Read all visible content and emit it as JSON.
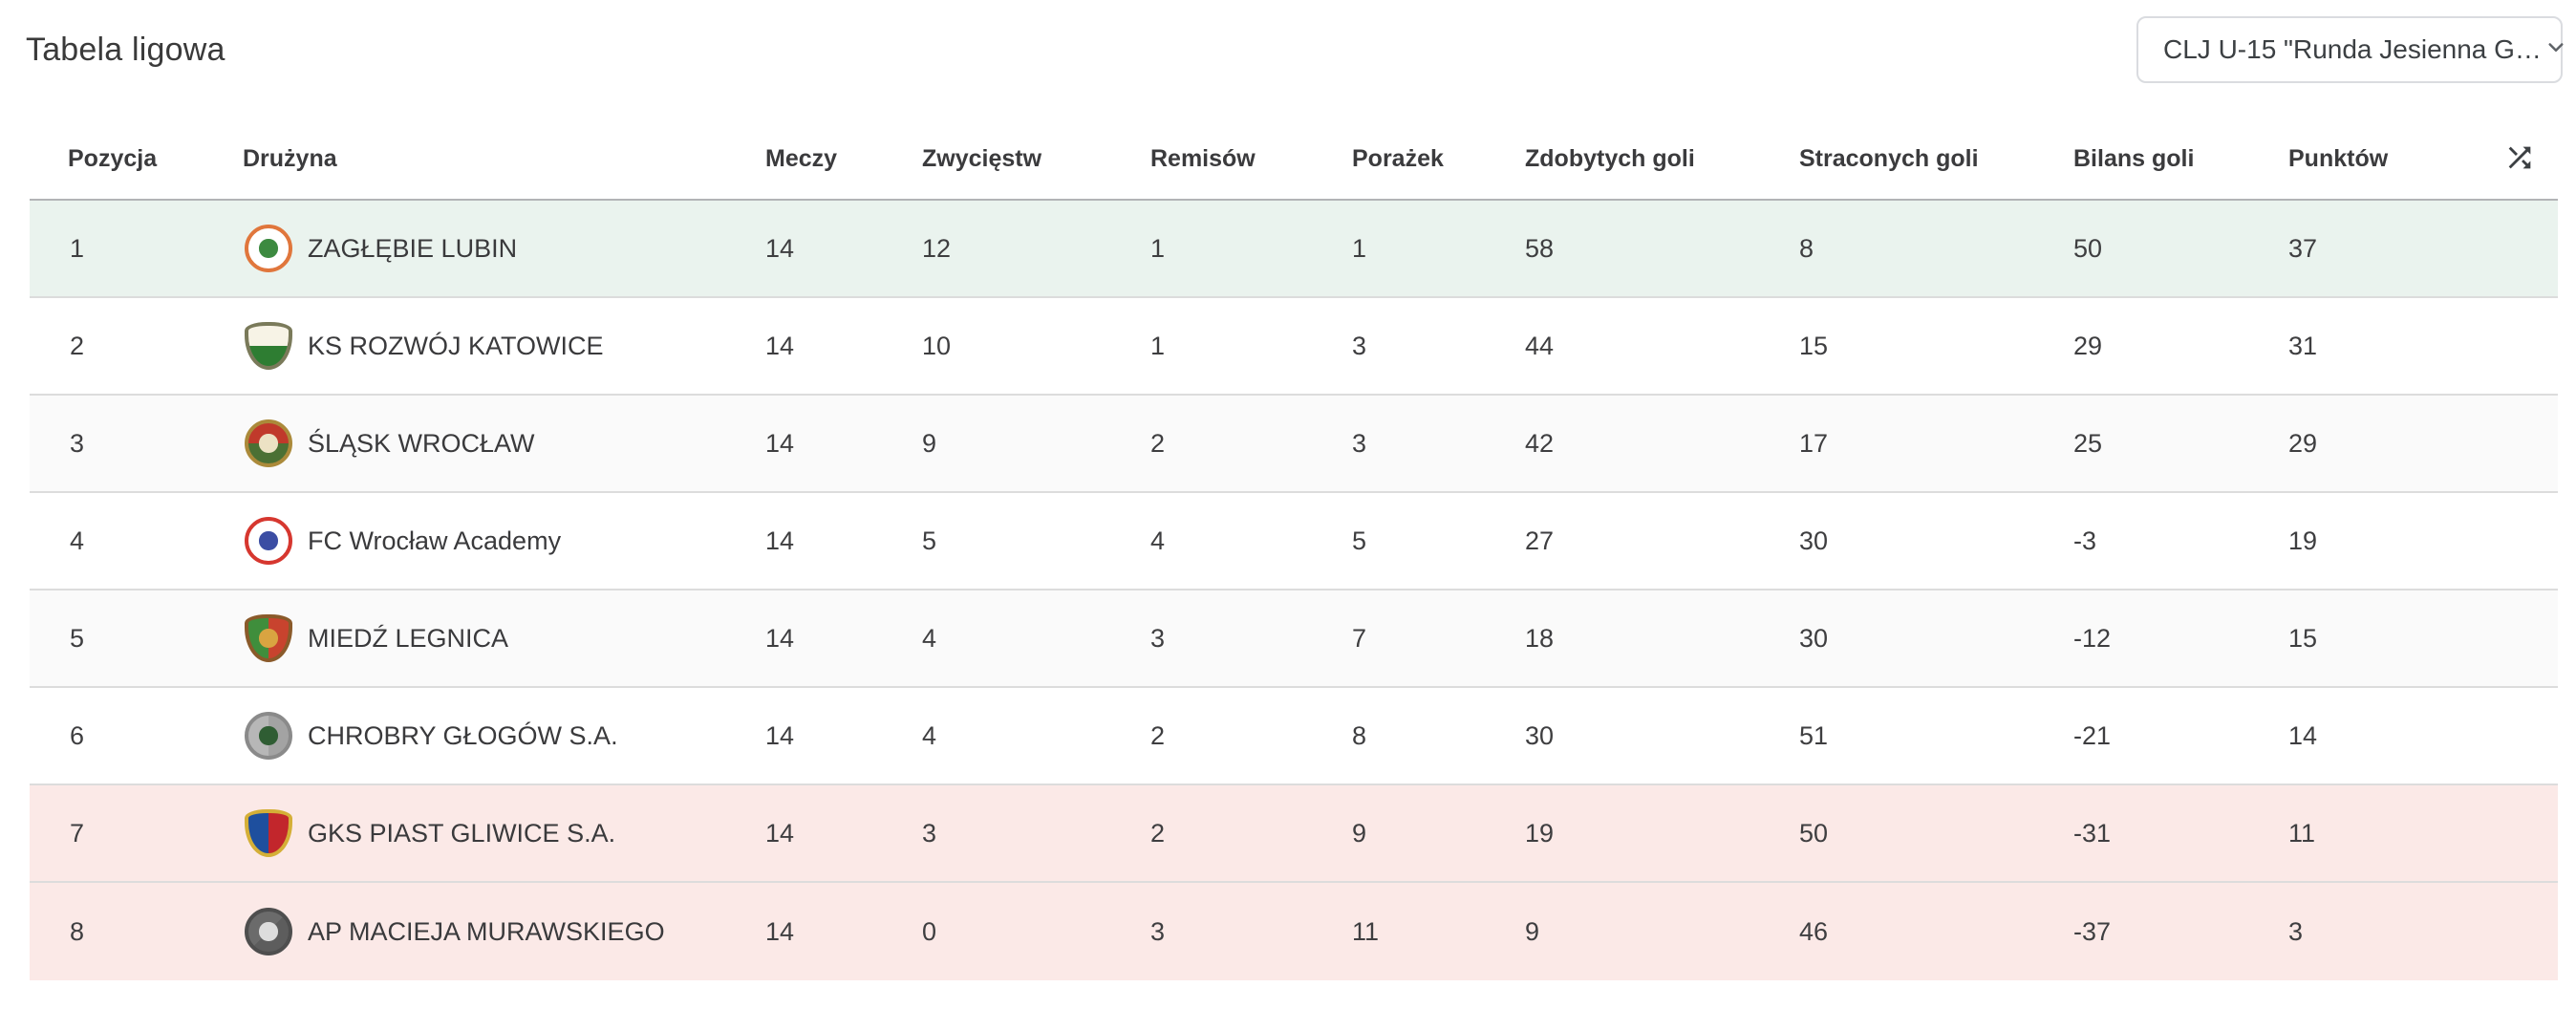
{
  "page": {
    "title": "Tabela ligowa"
  },
  "season_select": {
    "value": "CLJ U-15 \"Runda Jesienna G…",
    "chevron_icon": "chevron-down-icon"
  },
  "table": {
    "columns": [
      {
        "key": "pos",
        "label": "Pozycja"
      },
      {
        "key": "team",
        "label": "Drużyna"
      },
      {
        "key": "played",
        "label": "Meczy"
      },
      {
        "key": "wins",
        "label": "Zwycięstw"
      },
      {
        "key": "draws",
        "label": "Remisów"
      },
      {
        "key": "losses",
        "label": "Porażek"
      },
      {
        "key": "goals_for",
        "label": "Zdobytych goli"
      },
      {
        "key": "goals_against",
        "label": "Straconych goli"
      },
      {
        "key": "goal_diff",
        "label": "Bilans goli"
      },
      {
        "key": "points",
        "label": "Punktów"
      }
    ],
    "shuffle_icon": "shuffle-icon",
    "colors": {
      "promotion_bg": "#eaf3ee",
      "relegation_bg": "#fbe9e7",
      "stripe_bg": "#fafafa",
      "divider": "#dcdcdc",
      "table_top_border": "#b2b4b6"
    },
    "rows": [
      {
        "pos": 1,
        "team": "ZAGŁĘBIE LUBIN",
        "played": 14,
        "wins": 12,
        "draws": 1,
        "losses": 1,
        "goals_for": 58,
        "goals_against": 8,
        "goal_diff": 50,
        "points": 37,
        "highlight": "promotion",
        "badge": {
          "icon": "zaglebie-lubin-crest-icon",
          "shape": "circle",
          "ring": "#e0763c",
          "c1": "#ffffff",
          "c2": "#ffffff",
          "angle": "135deg",
          "core": "#3c8a40"
        }
      },
      {
        "pos": 2,
        "team": "KS ROZWÓJ KATOWICE",
        "played": 14,
        "wins": 10,
        "draws": 1,
        "losses": 3,
        "goals_for": 44,
        "goals_against": 15,
        "goal_diff": 29,
        "points": 31,
        "highlight": null,
        "badge": {
          "icon": "rozwoj-katowice-crest-icon",
          "shape": "shield",
          "ring": "#7a7a5a",
          "c1": "#f7f3e6",
          "c2": "#2e7d32",
          "angle": "180deg",
          "core": ""
        }
      },
      {
        "pos": 3,
        "team": "ŚLĄSK WROCŁAW",
        "played": 14,
        "wins": 9,
        "draws": 2,
        "losses": 3,
        "goals_for": 42,
        "goals_against": 17,
        "goal_diff": 25,
        "points": 29,
        "highlight": null,
        "badge": {
          "icon": "slask-wroclaw-crest-icon",
          "shape": "circle",
          "ring": "#ab8a3a",
          "c1": "#c0392b",
          "c2": "#4b7034",
          "angle": "180deg",
          "core": "#ece2c4"
        }
      },
      {
        "pos": 4,
        "team": "FC Wrocław Academy",
        "played": 14,
        "wins": 5,
        "draws": 4,
        "losses": 5,
        "goals_for": 27,
        "goals_against": 30,
        "goal_diff": -3,
        "points": 19,
        "highlight": null,
        "badge": {
          "icon": "fc-wroclaw-academy-crest-icon",
          "shape": "circle",
          "ring": "#d6372f",
          "c1": "#ffffff",
          "c2": "#ffffff",
          "angle": "135deg",
          "core": "#3b4da3"
        }
      },
      {
        "pos": 5,
        "team": "MIEDŹ LEGNICA",
        "played": 14,
        "wins": 4,
        "draws": 3,
        "losses": 7,
        "goals_for": 18,
        "goals_against": 30,
        "goal_diff": -12,
        "points": 15,
        "highlight": null,
        "badge": {
          "icon": "miedz-legnica-crest-icon",
          "shape": "shield",
          "ring": "#8a5a2a",
          "c1": "#3f8e3c",
          "c2": "#c8432e",
          "angle": "90deg",
          "core": "#d9a441"
        }
      },
      {
        "pos": 6,
        "team": "CHROBRY GŁOGÓW S.A.",
        "played": 14,
        "wins": 4,
        "draws": 2,
        "losses": 8,
        "goals_for": 30,
        "goals_against": 51,
        "goal_diff": -21,
        "points": 14,
        "highlight": null,
        "badge": {
          "icon": "chrobry-glogow-crest-icon",
          "shape": "circle",
          "ring": "#8a8a8a",
          "c1": "#b7b7b7",
          "c2": "#a3a3a3",
          "angle": "90deg",
          "core": "#2f5d33"
        }
      },
      {
        "pos": 7,
        "team": "GKS PIAST GLIWICE S.A.",
        "played": 14,
        "wins": 3,
        "draws": 2,
        "losses": 9,
        "goals_for": 19,
        "goals_against": 50,
        "goal_diff": -31,
        "points": 11,
        "highlight": "relegation",
        "badge": {
          "icon": "piast-gliwice-crest-icon",
          "shape": "shield",
          "ring": "#d4af37",
          "c1": "#1e4f9e",
          "c2": "#c2262c",
          "angle": "90deg",
          "core": ""
        }
      },
      {
        "pos": 8,
        "team": "AP MACIEJA MURAWSKIEGO",
        "played": 14,
        "wins": 0,
        "draws": 3,
        "losses": 11,
        "goals_for": 9,
        "goals_against": 46,
        "goal_diff": -37,
        "points": 3,
        "highlight": "relegation",
        "badge": {
          "icon": "ap-macieja-murawskiego-crest-icon",
          "shape": "circle",
          "ring": "#4e4e4e",
          "c1": "#6b6b6b",
          "c2": "#5d5d5d",
          "angle": "135deg",
          "core": "#dddddd"
        }
      }
    ]
  }
}
